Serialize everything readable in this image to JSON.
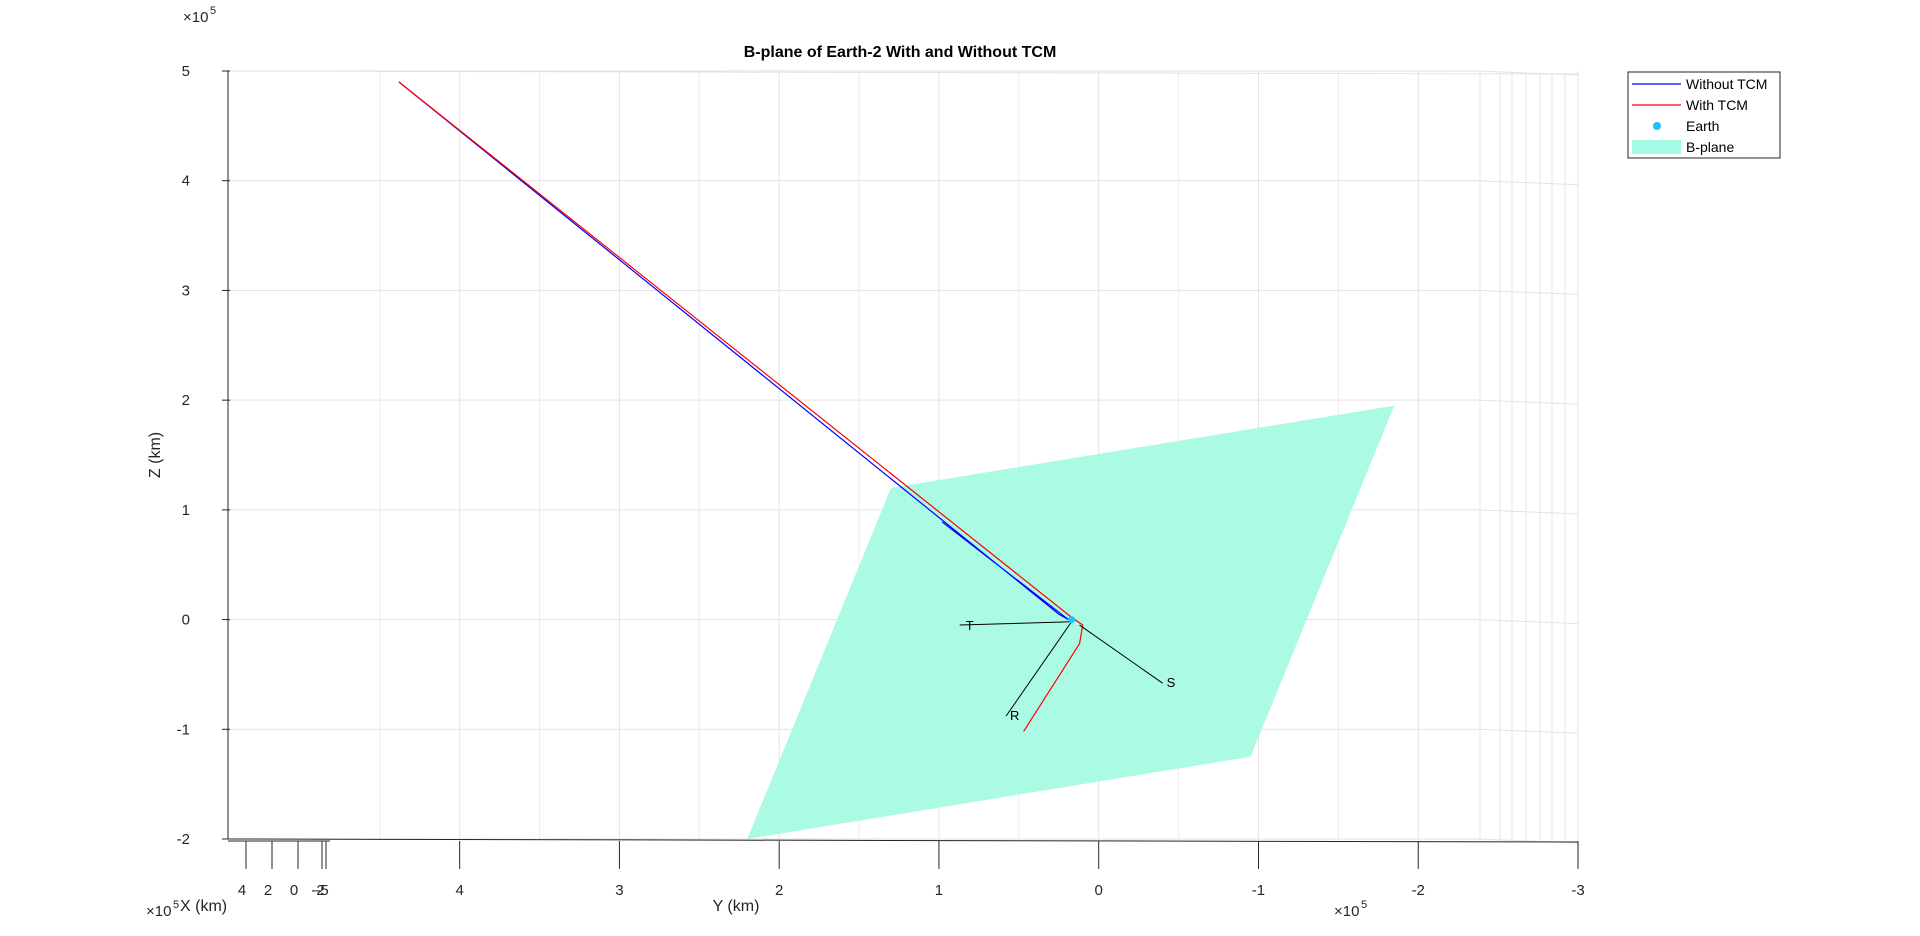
{
  "chart_data": {
    "type": "line",
    "title": "B-plane of Earth-2 With and Without TCM",
    "xlabel": "Y (km)",
    "ylabel": "Z (km)",
    "zlabel": "X (km)",
    "y_axis_exponent": "×10^5",
    "x_axis_exponent": "×10^5",
    "z_axis_exponent": "×10^5",
    "ylim": [
      -2,
      5
    ],
    "xlim": [
      -3,
      5
    ],
    "grid": true,
    "legend_position": "top-right",
    "z_ticks": [
      {
        "v": -2,
        "label": "-2"
      },
      {
        "v": -1,
        "label": "-1"
      },
      {
        "v": 0,
        "label": "0"
      },
      {
        "v": 1,
        "label": "1"
      },
      {
        "v": 2,
        "label": "2"
      },
      {
        "v": 3,
        "label": "3"
      },
      {
        "v": 4,
        "label": "4"
      },
      {
        "v": 5,
        "label": "5"
      }
    ],
    "y_ticks": [
      {
        "v": 4,
        "label": "4"
      },
      {
        "v": 3,
        "label": "3"
      },
      {
        "v": 2,
        "label": "2"
      },
      {
        "v": 1,
        "label": "1"
      },
      {
        "v": 0,
        "label": "0"
      },
      {
        "v": -1,
        "label": "-1"
      },
      {
        "v": -2,
        "label": "-2"
      },
      {
        "v": -3,
        "label": "-3"
      }
    ],
    "x_depth_ticks": [
      {
        "v": 4,
        "label": "4"
      },
      {
        "v": 2,
        "label": "2"
      },
      {
        "v": 0,
        "label": "0"
      },
      {
        "v": -2,
        "label": "-2"
      },
      {
        "v": -5,
        "label": "-5"
      }
    ],
    "series": [
      {
        "name": "Without TCM",
        "color": "#0000ff",
        "points": [
          [
            4.38,
            4.9
          ],
          [
            0.25,
            0.05
          ],
          [
            0.19,
            0.0
          ],
          [
            0.98,
            0.89
          ]
        ]
      },
      {
        "name": "With TCM",
        "color": "#ff0000",
        "points": [
          [
            4.38,
            4.9
          ],
          [
            0.17,
            0.02
          ],
          [
            0.1,
            -0.05
          ],
          [
            0.12,
            -0.22
          ],
          [
            0.47,
            -1.02
          ]
        ]
      }
    ],
    "earth": {
      "name": "Earth",
      "color": "#1ec2ff",
      "point": [
        0.17,
        0.0
      ]
    },
    "b_plane": {
      "name": "B-plane",
      "color": "#a6fae3",
      "corners": [
        [
          1.3,
          1.2
        ],
        [
          -1.85,
          1.95
        ],
        [
          -0.95,
          -1.25
        ],
        [
          2.2,
          -2.0
        ]
      ]
    },
    "axis_vectors": [
      {
        "label": "T",
        "from": [
          0.17,
          -0.02
        ],
        "to": [
          0.87,
          -0.05
        ]
      },
      {
        "label": "R",
        "from": [
          0.17,
          -0.02
        ],
        "to": [
          0.58,
          -0.88
        ]
      },
      {
        "label": "S",
        "from": [
          0.12,
          -0.05
        ],
        "to": [
          -0.4,
          -0.58
        ]
      }
    ],
    "legend": [
      "Without TCM",
      "With TCM",
      "Earth",
      "B-plane"
    ]
  }
}
